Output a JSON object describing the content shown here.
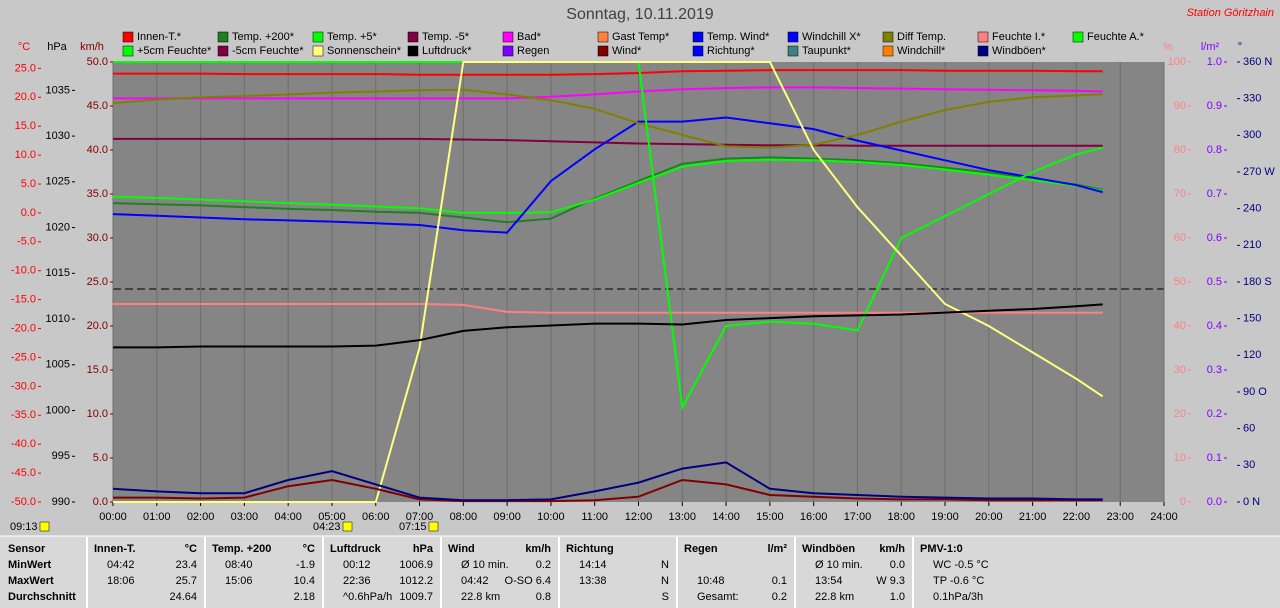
{
  "chart_data": {
    "type": "line",
    "title": "Sonntag, 10.11.2019",
    "station": "Station Göritzhain",
    "x": [
      0,
      1,
      2,
      3,
      4,
      5,
      6,
      7,
      8,
      9,
      10,
      11,
      12,
      13,
      14,
      15,
      16,
      17,
      18,
      19,
      20,
      21,
      22,
      22.6
    ],
    "xlim": [
      0,
      24
    ],
    "xticks": [
      {
        "value": 0,
        "label": "00:00"
      },
      {
        "value": 1,
        "label": "01:00"
      },
      {
        "value": 2,
        "label": "02:00"
      },
      {
        "value": 3,
        "label": "03:00"
      },
      {
        "value": 4,
        "label": "04:00"
      },
      {
        "value": 5,
        "label": "05:00"
      },
      {
        "value": 6,
        "label": "06:00"
      },
      {
        "value": 7,
        "label": "07:00"
      },
      {
        "value": 8,
        "label": "08:00"
      },
      {
        "value": 9,
        "label": "09:00"
      },
      {
        "value": 10,
        "label": "10:00"
      },
      {
        "value": 11,
        "label": "11:00"
      },
      {
        "value": 12,
        "label": "12:00"
      },
      {
        "value": 13,
        "label": "13:00"
      },
      {
        "value": 14,
        "label": "14:00"
      },
      {
        "value": 15,
        "label": "15:00"
      },
      {
        "value": 16,
        "label": "16:00"
      },
      {
        "value": 17,
        "label": "17:00"
      },
      {
        "value": 18,
        "label": "18:00"
      },
      {
        "value": 19,
        "label": "19:00"
      },
      {
        "value": 20,
        "label": "20:00"
      },
      {
        "value": 21,
        "label": "21:00"
      },
      {
        "value": 22,
        "label": "22:00"
      },
      {
        "value": 23,
        "label": "23:00"
      },
      {
        "value": 24,
        "label": "24:00"
      }
    ],
    "grid": true,
    "axes": [
      {
        "label": "°C",
        "color": "#ff0000",
        "lim": [
          -50,
          26.1
        ],
        "ticks": [
          {
            "value": 25,
            "label": "25.0"
          },
          {
            "value": 20,
            "label": "20.0"
          },
          {
            "value": 15,
            "label": "15.0"
          },
          {
            "value": 10,
            "label": "10.0"
          },
          {
            "value": 5,
            "label": "5.0"
          },
          {
            "value": 0,
            "label": "0.0"
          },
          {
            "value": -5,
            "label": "-5.0"
          },
          {
            "value": -10,
            "label": "-10.0"
          },
          {
            "value": -15,
            "label": "-15.0"
          },
          {
            "value": -20,
            "label": "-20.0"
          },
          {
            "value": -25,
            "label": "-25.0"
          },
          {
            "value": -30,
            "label": "-30.0"
          },
          {
            "value": -35,
            "label": "-35.0"
          },
          {
            "value": -40,
            "label": "-40.0"
          },
          {
            "value": -45,
            "label": "-45.0"
          },
          {
            "value": -50,
            "label": "-50.0"
          }
        ]
      },
      {
        "label": "hPa",
        "color": "#000000",
        "lim": [
          990,
          1038.1
        ],
        "ticks": [
          1035,
          1030,
          1025,
          1020,
          1015,
          1010,
          1005,
          1000,
          995,
          990
        ]
      },
      {
        "label": "km/h",
        "color": "#800000",
        "lim": [
          0,
          50
        ],
        "ticks": [
          {
            "value": 50,
            "label": "50.0"
          },
          {
            "value": 45,
            "label": "45.0"
          },
          {
            "value": 40,
            "label": "40.0"
          },
          {
            "value": 35,
            "label": "35.0"
          },
          {
            "value": 30,
            "label": "30.0"
          },
          {
            "value": 25,
            "label": "25.0"
          },
          {
            "value": 20,
            "label": "20.0"
          },
          {
            "value": 15,
            "label": "15.0"
          },
          {
            "value": 10,
            "label": "10.0"
          },
          {
            "value": 5,
            "label": "5.0"
          },
          {
            "value": 0,
            "label": "0.0"
          }
        ]
      },
      {
        "label": "%",
        "color": "#ff8080",
        "lim": [
          0,
          100
        ],
        "ticks": [
          100,
          90,
          80,
          70,
          60,
          50,
          40,
          30,
          20,
          10,
          0
        ]
      },
      {
        "label": "l/m²",
        "color": "#8000ff",
        "lim": [
          0,
          1
        ],
        "ticks": [
          {
            "value": 1,
            "label": "1.0"
          },
          {
            "value": 0.9,
            "label": "0.9"
          },
          {
            "value": 0.8,
            "label": "0.8"
          },
          {
            "value": 0.7,
            "label": "0.7"
          },
          {
            "value": 0.6,
            "label": "0.6"
          },
          {
            "value": 0.5,
            "label": "0.5"
          },
          {
            "value": 0.4,
            "label": "0.4"
          },
          {
            "value": 0.3,
            "label": "0.3"
          },
          {
            "value": 0.2,
            "label": "0.2"
          },
          {
            "value": 0.1,
            "label": "0.1"
          },
          {
            "value": 0,
            "label": "0.0"
          }
        ]
      },
      {
        "label": "°",
        "color": "#000080",
        "lim": [
          0,
          360
        ],
        "ticks": [
          {
            "value": 360,
            "label": "360 N"
          },
          330,
          300,
          {
            "value": 270,
            "label": "270 W"
          },
          240,
          210,
          {
            "value": 180,
            "label": "180 S"
          },
          150,
          120,
          {
            "value": 90,
            "label": "90 O"
          },
          60,
          30,
          {
            "value": 0,
            "label": "0 N"
          }
        ]
      }
    ],
    "series": [
      {
        "name": "Innen-T.*",
        "color": "#ff0000",
        "axis": "°C",
        "values": [
          24.1,
          24.1,
          24.1,
          24.0,
          24.0,
          24.0,
          24.0,
          23.9,
          23.9,
          23.9,
          23.9,
          24.0,
          24.2,
          24.5,
          24.6,
          24.7,
          24.7,
          24.7,
          24.7,
          24.6,
          24.6,
          24.6,
          24.5,
          24.5
        ]
      },
      {
        "name": "Temp. +200*",
        "color": "#208020",
        "axis": "°C",
        "values": [
          1.7,
          1.5,
          1.3,
          1.0,
          0.7,
          0.5,
          0.2,
          0.0,
          -0.8,
          -1.6,
          -1.0,
          2.5,
          5.5,
          8.5,
          9.4,
          9.6,
          9.4,
          9.1,
          8.6,
          7.8,
          7.0,
          6.0,
          4.9,
          4.0
        ]
      },
      {
        "name": "Temp. +5*",
        "color": "#00ff00",
        "axis": "°C",
        "values": [
          2.8,
          2.6,
          2.3,
          2.0,
          1.7,
          1.4,
          1.1,
          0.8,
          0.0,
          0.0,
          0.1,
          2.3,
          5.2,
          8.0,
          9.0,
          9.2,
          9.1,
          8.8,
          8.3,
          7.5,
          6.6,
          5.7,
          4.7,
          3.8
        ]
      },
      {
        "name": "Temp. -5*",
        "color": "#800040",
        "axis": "°C",
        "values": [
          12.8,
          12.8,
          12.8,
          12.8,
          12.8,
          12.8,
          12.8,
          12.8,
          12.7,
          12.6,
          12.4,
          12.2,
          12.0,
          11.9,
          11.8,
          11.7,
          11.7,
          11.6,
          11.6,
          11.6,
          11.6,
          11.6,
          11.6,
          11.6
        ]
      },
      {
        "name": "Bad*",
        "color": "#ff00ff",
        "axis": "°C",
        "values": [
          19.8,
          19.8,
          19.8,
          19.8,
          19.8,
          19.8,
          19.8,
          19.8,
          19.8,
          19.8,
          20.1,
          20.5,
          21.0,
          21.4,
          21.6,
          21.7,
          21.7,
          21.6,
          21.5,
          21.4,
          21.3,
          21.2,
          21.1,
          21.0
        ]
      },
      {
        "name": "Gast Temp*",
        "color": "#ff8040"
      },
      {
        "name": "Temp. Wind*",
        "color": "#0000ff",
        "axis": "°C",
        "values": [
          -0.2,
          -0.5,
          -0.8,
          -1.1,
          -1.3,
          -1.5,
          -1.8,
          -2.1,
          -3.0,
          -3.4,
          5.5,
          11.0,
          15.8,
          15.8,
          16.5,
          15.5,
          14.5,
          12.5,
          10.8,
          9.1,
          7.4,
          6.1,
          4.8,
          3.6
        ]
      },
      {
        "name": "Windchill X*",
        "color": "#0000ff"
      },
      {
        "name": "Diff Temp.",
        "color": "#808000",
        "axis": "°C",
        "values": [
          19.0,
          19.6,
          20.0,
          20.2,
          20.5,
          20.8,
          21.0,
          21.2,
          21.3,
          20.5,
          19.5,
          18.0,
          15.5,
          13.5,
          11.5,
          11.3,
          11.8,
          13.5,
          15.8,
          17.8,
          19.2,
          20.0,
          20.3,
          20.5
        ]
      },
      {
        "name": "Feuchte I.*",
        "color": "#ff8080",
        "axis": "%",
        "values": [
          45.0,
          45.0,
          45.0,
          45.0,
          45.0,
          45.0,
          45.0,
          45.0,
          44.8,
          43.2,
          43.0,
          43.0,
          43.0,
          43.0,
          43.0,
          43.0,
          43.0,
          43.0,
          43.0,
          43.0,
          43.0,
          43.0,
          43.0,
          43.0
        ]
      },
      {
        "name": "Feuchte A.*",
        "color": "#00ff00",
        "axis": "%",
        "values": [
          100,
          100,
          100,
          100,
          100,
          100,
          100,
          100,
          100,
          100,
          100,
          100,
          100,
          21.5,
          40,
          41,
          40.5,
          39,
          60,
          65,
          70,
          75,
          79,
          80.5
        ]
      },
      {
        "name": "+5cm Feuchte*",
        "color": "#00ff00"
      },
      {
        "name": "-5cm Feuchte*",
        "color": "#800040"
      },
      {
        "name": "Sonnenschein*",
        "color": "#ffff80",
        "axis": "%",
        "values": [
          0,
          0,
          0,
          0,
          0,
          0,
          0,
          35,
          100,
          100,
          100,
          100,
          100,
          100,
          100,
          100,
          80,
          67,
          56,
          45,
          40,
          34,
          28,
          24
        ]
      },
      {
        "name": "Luftdruck*",
        "color": "#000000",
        "axis": "hPa",
        "values": [
          1006.9,
          1006.9,
          1007.0,
          1007.0,
          1007.0,
          1007.0,
          1007.1,
          1007.7,
          1008.7,
          1009.1,
          1009.3,
          1009.5,
          1009.5,
          1009.4,
          1009.9,
          1010.1,
          1010.3,
          1010.4,
          1010.5,
          1010.7,
          1010.9,
          1011.1,
          1011.4,
          1011.6
        ]
      },
      {
        "name": "Regen",
        "color": "#8000ff"
      },
      {
        "name": "Wind*",
        "color": "#800000",
        "axis": "km/h",
        "values": [
          0.5,
          0.5,
          0.4,
          0.5,
          1.8,
          2.5,
          1.5,
          0.3,
          0.1,
          0.1,
          0.1,
          0.2,
          0.6,
          2.5,
          2.0,
          0.8,
          0.6,
          0.4,
          0.3,
          0.3,
          0.2,
          0.2,
          0.2,
          0.2
        ]
      },
      {
        "name": "Richtung*",
        "color": "#0000ff"
      },
      {
        "name": "Taupunkt*",
        "color": "#408080"
      },
      {
        "name": "Windchill*",
        "color": "#ff8000"
      },
      {
        "name": "Windböen*",
        "color": "#000080",
        "axis": "km/h",
        "values": [
          1.5,
          1.2,
          1.0,
          1.0,
          2.5,
          3.5,
          2.0,
          0.5,
          0.2,
          0.2,
          0.3,
          1.2,
          2.2,
          3.8,
          4.5,
          1.5,
          1.0,
          0.8,
          0.6,
          0.5,
          0.4,
          0.4,
          0.3,
          0.3
        ]
      }
    ],
    "markers": [
      "09:13",
      "04:23",
      "07:15"
    ]
  },
  "table": {
    "row_labels": [
      "Sensor",
      "MinWert",
      "MaxWert",
      "Durchschnitt"
    ],
    "groups": [
      {
        "header": "Innen-T.",
        "unit": "°C",
        "rows": [
          [
            "04:42",
            "23.4"
          ],
          [
            "18:06",
            "25.7"
          ],
          [
            null,
            "24.64"
          ]
        ]
      },
      {
        "header": "Temp. +200",
        "unit": "°C",
        "rows": [
          [
            "08:40",
            "-1.9"
          ],
          [
            "15:06",
            "10.4"
          ],
          [
            null,
            "2.18"
          ]
        ]
      },
      {
        "header": "Luftdruck",
        "unit": "hPa",
        "rows": [
          [
            "00:12",
            "1006.9"
          ],
          [
            "22:36",
            "1012.2"
          ],
          [
            "^0.6hPa/h",
            "1009.7"
          ]
        ]
      },
      {
        "header": "Wind",
        "unit": "km/h",
        "rows": [
          [
            "Ø 10 min.",
            "0.2"
          ],
          [
            "04:42",
            "O-SO 6.4"
          ],
          [
            "22.8 km",
            "0.8"
          ]
        ]
      },
      {
        "header": "Richtung",
        "unit": null,
        "rows": [
          [
            "14:14",
            "N"
          ],
          [
            "13:38",
            "N"
          ],
          [
            null,
            "S"
          ]
        ]
      },
      {
        "header": "Regen",
        "unit": "l/m²",
        "rows": [
          [
            null,
            null
          ],
          [
            "10:48",
            "0.1"
          ],
          [
            "Gesamt:",
            "0.2"
          ]
        ]
      },
      {
        "header": "Windböen",
        "unit": "km/h",
        "rows": [
          [
            "Ø 10 min.",
            "0.0"
          ],
          [
            "13:54",
            "W 9.3"
          ],
          [
            "22.8 km",
            "1.0"
          ]
        ]
      },
      {
        "header": "PMV-1:0",
        "unit": null,
        "rows": [
          [
            "WC -0.5 °C",
            null
          ],
          [
            "TP -0.6 °C",
            null
          ],
          [
            "0.1hPa/3h",
            null
          ]
        ]
      }
    ]
  }
}
